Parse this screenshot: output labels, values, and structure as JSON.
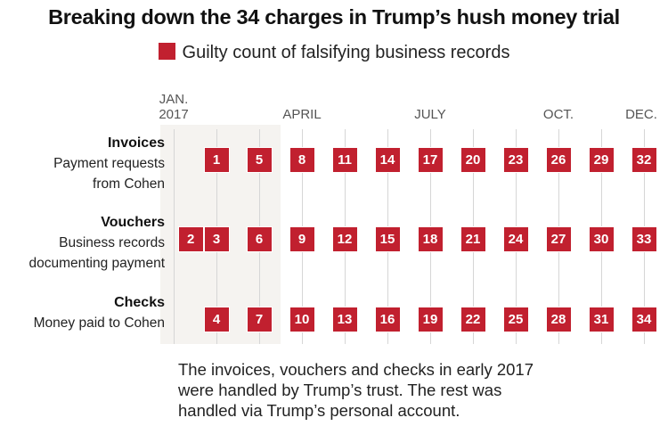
{
  "title": "Breaking down the 34 charges in Trump’s hush money trial",
  "legend": {
    "label": "Guilty count of falsifying business records",
    "color": "#c1202f"
  },
  "note": [
    "The invoices, vouchers and checks in early 2017",
    "were handled by Trump’s trust. The rest was",
    "handled via Trump’s personal account."
  ],
  "chart_data": {
    "type": "table",
    "title": "Breaking down the 34 charges in Trump’s hush money trial",
    "x_axis": {
      "unit": "month index of 2017 (0 = Jan.)",
      "range": [
        0,
        11
      ],
      "ticks": [
        {
          "value": 0,
          "label": [
            "JAN.",
            "2017"
          ]
        },
        {
          "value": 3,
          "label": [
            "APRIL"
          ]
        },
        {
          "value": 6,
          "label": [
            "JULY"
          ]
        },
        {
          "value": 9,
          "label": [
            "OCT."
          ]
        },
        {
          "value": 11,
          "label": [
            "DEC."
          ]
        }
      ]
    },
    "shaded_range": [
      0,
      2.5
    ],
    "rows": [
      {
        "title": "Invoices",
        "subtitle": [
          "Payment requests",
          "from Cohen"
        ],
        "charges": [
          {
            "n": "1",
            "x": 1
          },
          {
            "n": "5",
            "x": 2
          },
          {
            "n": "8",
            "x": 3
          },
          {
            "n": "11",
            "x": 4
          },
          {
            "n": "14",
            "x": 5
          },
          {
            "n": "17",
            "x": 6
          },
          {
            "n": "20",
            "x": 7
          },
          {
            "n": "23",
            "x": 8
          },
          {
            "n": "26",
            "x": 9
          },
          {
            "n": "29",
            "x": 10
          },
          {
            "n": "32",
            "x": 11
          }
        ]
      },
      {
        "title": "Vouchers",
        "subtitle": [
          "Business records",
          "documenting payment"
        ],
        "charges": [
          {
            "n": "2",
            "x": 0.4
          },
          {
            "n": "3",
            "x": 1
          },
          {
            "n": "6",
            "x": 2
          },
          {
            "n": "9",
            "x": 3
          },
          {
            "n": "12",
            "x": 4
          },
          {
            "n": "15",
            "x": 5
          },
          {
            "n": "18",
            "x": 6
          },
          {
            "n": "21",
            "x": 7
          },
          {
            "n": "24",
            "x": 8
          },
          {
            "n": "27",
            "x": 9
          },
          {
            "n": "30",
            "x": 10
          },
          {
            "n": "33",
            "x": 11
          }
        ]
      },
      {
        "title": "Checks",
        "subtitle": [
          "Money paid to Cohen"
        ],
        "charges": [
          {
            "n": "4",
            "x": 1
          },
          {
            "n": "7",
            "x": 2
          },
          {
            "n": "10",
            "x": 3
          },
          {
            "n": "13",
            "x": 4
          },
          {
            "n": "16",
            "x": 5
          },
          {
            "n": "19",
            "x": 6
          },
          {
            "n": "22",
            "x": 7
          },
          {
            "n": "25",
            "x": 8
          },
          {
            "n": "28",
            "x": 9
          },
          {
            "n": "31",
            "x": 10
          },
          {
            "n": "34",
            "x": 11
          }
        ]
      }
    ]
  }
}
